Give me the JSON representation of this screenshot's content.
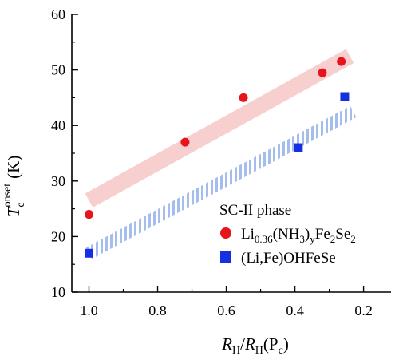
{
  "chart_data": {
    "type": "scatter",
    "title": "",
    "xlabel": {
      "main": "R",
      "sub": "H",
      "sep": "/",
      "main2": "R",
      "sub2": "H",
      "paren": "(P",
      "paren_sub": "c",
      "close": ")"
    },
    "ylabel": {
      "main": "T",
      "sub": "c",
      "sup": "onset",
      "unit": "(K)"
    },
    "x_axis": {
      "reversed": true,
      "xlim": [
        1.05,
        0.12
      ],
      "ticks": [
        1.0,
        0.8,
        0.6,
        0.4,
        0.2
      ],
      "tick_labels": [
        "1.0",
        "0.8",
        "0.6",
        "0.4",
        "0.2"
      ]
    },
    "y_axis": {
      "ylim": [
        10,
        60
      ],
      "ticks": [
        10,
        20,
        30,
        40,
        50,
        60
      ],
      "tick_labels": [
        "10",
        "20",
        "30",
        "40",
        "50",
        "60"
      ]
    },
    "grid": false,
    "legend": {
      "title": "SC-II phase",
      "placement": "bottom-right"
    },
    "series": [
      {
        "name": "Li0.36(NH3)yFe2Se2",
        "label_parts": {
          "a": "Li",
          "a_sub": "0.36",
          "b": "(NH",
          "b_sub": "3",
          "c": ")",
          "c_sub": "y",
          "d": "Fe",
          "d_sub": "2",
          "e": "Se",
          "e_sub": "2"
        },
        "marker": "circle",
        "color": "#e8141b",
        "x": [
          1.0,
          0.72,
          0.55,
          0.32,
          0.265
        ],
        "y": [
          24.0,
          37.0,
          45.0,
          49.5,
          51.5
        ],
        "trend_band": {
          "color": "#f2a8a8",
          "x": [
            1.0,
            0.24
          ],
          "y": [
            26.5,
            52.5
          ]
        }
      },
      {
        "name": "(Li,Fe)OHFeSe",
        "marker": "square",
        "color": "#1430e0",
        "x": [
          1.0,
          0.39,
          0.255
        ],
        "y": [
          17.0,
          36.0,
          45.2
        ],
        "trend_band": {
          "color": "#9ab6ec",
          "x": [
            1.0,
            0.23
          ],
          "y": [
            17.0,
            42.5
          ]
        }
      }
    ]
  }
}
